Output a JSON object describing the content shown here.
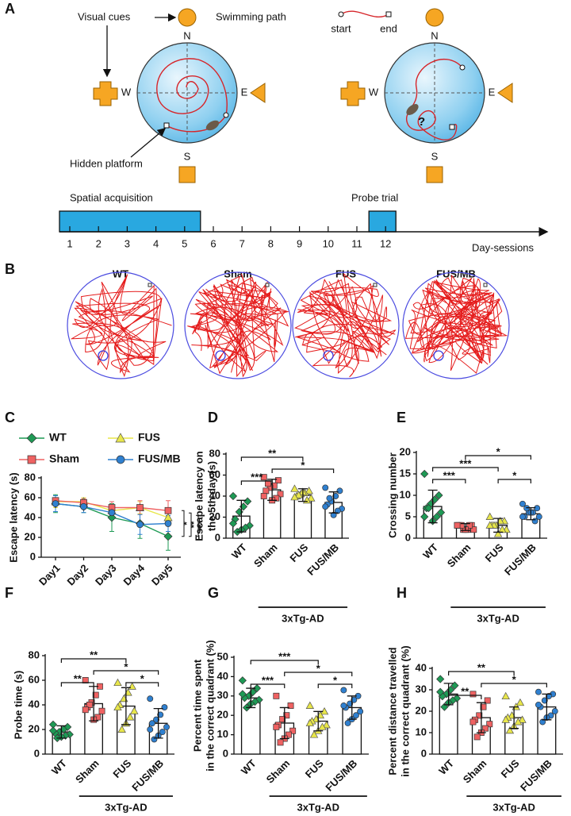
{
  "panel_a": {
    "label": "A",
    "visual_cues": "Visual cues",
    "swimming_path": "Swimming path",
    "start": "start",
    "end": "end",
    "hidden_platform": "Hidden platform",
    "question": "?",
    "compass_left": [
      "N",
      "W",
      "E",
      "S"
    ],
    "compass_right": [
      "N",
      "W",
      "E",
      "S"
    ],
    "timeline": {
      "acquisition": "Spatial acquisition",
      "probe": "Probe trial",
      "days": [
        1,
        2,
        3,
        4,
        5,
        6,
        7,
        8,
        9,
        10,
        11,
        12
      ],
      "acquisition_days": [
        1,
        5
      ],
      "probe_day": 12,
      "axis_label": "Day-sessions"
    }
  },
  "panel_b": {
    "label": "B",
    "titles": [
      "WT",
      "Sham",
      "FUS",
      "FUS/MB"
    ]
  },
  "chart_data": [
    {
      "label": "C",
      "type": "line",
      "ylabel": [
        "Escape latency (s)"
      ],
      "categories": [
        "Day1",
        "Day2",
        "Day3",
        "Day4",
        "Day5"
      ],
      "series": [
        {
          "name": "WT",
          "color": "#1e9a55",
          "marker": "diamond",
          "values": [
            54,
            51,
            40,
            34,
            21
          ],
          "errors": [
            9,
            6,
            14,
            15,
            14
          ]
        },
        {
          "name": "FUS",
          "color": "#e8e64a",
          "marker": "triangle",
          "values": [
            56,
            56,
            47,
            50,
            40
          ],
          "errors": [
            6,
            4,
            5,
            6,
            7
          ]
        },
        {
          "name": "Sham",
          "color": "#ef6262",
          "marker": "square",
          "values": [
            57,
            55,
            50,
            50,
            47
          ],
          "errors": [
            5,
            4,
            6,
            7,
            10
          ]
        },
        {
          "name": "FUS/MB",
          "color": "#2f80d0",
          "marker": "circle",
          "values": [
            54,
            51,
            45,
            33,
            34
          ],
          "errors": [
            8,
            6,
            7,
            10,
            8
          ]
        }
      ],
      "ylim": [
        0,
        80
      ],
      "yticks": [
        0,
        20,
        40,
        60,
        80
      ],
      "significance": [
        "*",
        "**",
        "***"
      ]
    },
    {
      "label": "D",
      "type": "bar",
      "ylabel": [
        "Escape latency on",
        "the 5th day (s)"
      ],
      "categories": [
        "WT",
        "Sham",
        "FUS",
        "FUS/MB"
      ],
      "colors": [
        "#1e9a55",
        "#ef6262",
        "#e8e64a",
        "#2f80d0"
      ],
      "values": [
        21,
        46,
        41,
        34
      ],
      "errors": [
        15,
        10,
        6,
        10
      ],
      "points": [
        [
          40,
          35,
          30,
          25,
          18,
          12,
          10,
          8,
          6,
          14
        ],
        [
          58,
          55,
          50,
          48,
          45,
          42,
          38,
          36,
          52,
          40
        ],
        [
          47,
          45,
          43,
          42,
          40,
          38,
          36,
          44,
          41,
          39
        ],
        [
          48,
          45,
          40,
          35,
          32,
          28,
          26,
          22,
          38,
          30
        ]
      ],
      "ylim": [
        0,
        80
      ],
      "yticks": [
        0,
        20,
        40,
        60,
        80
      ],
      "comparisons": [
        {
          "pair": [
            "WT",
            "Sham"
          ],
          "label": "***"
        },
        {
          "pair": [
            "Sham",
            "FUS/MB"
          ],
          "label": "*"
        },
        {
          "pair": [
            "WT",
            "FUS"
          ],
          "label": "**"
        }
      ],
      "group": {
        "label": "3xTg-AD",
        "members": [
          "Sham",
          "FUS",
          "FUS/MB"
        ]
      }
    },
    {
      "label": "E",
      "type": "bar",
      "ylabel": [
        "Crossing number"
      ],
      "categories": [
        "WT",
        "Sham",
        "FUS",
        "FUS/MB"
      ],
      "colors": [
        "#1e9a55",
        "#ef6262",
        "#e8e64a",
        "#2f80d0"
      ],
      "values": [
        7.4,
        2.6,
        3,
        5.7
      ],
      "errors": [
        3.8,
        0.8,
        1.6,
        1.4
      ],
      "points": [
        [
          15,
          10,
          9,
          8,
          7,
          6,
          5,
          4,
          7,
          5
        ],
        [
          3,
          3,
          2,
          2,
          3,
          2,
          3,
          2,
          3,
          3
        ],
        [
          5,
          4,
          4,
          3,
          3,
          2,
          2,
          1,
          3,
          3
        ],
        [
          8,
          7,
          6,
          6,
          5,
          5,
          4,
          6,
          7,
          5
        ]
      ],
      "ylim": [
        0,
        20
      ],
      "yticks": [
        0,
        5,
        10,
        15,
        20
      ],
      "comparisons": [
        {
          "pair": [
            "FUS",
            "FUS/MB"
          ],
          "label": "*"
        },
        {
          "pair": [
            "WT",
            "FUS"
          ],
          "label": "***"
        },
        {
          "pair": [
            "WT",
            "Sham"
          ],
          "label": "***"
        },
        {
          "pair": [
            "Sham",
            "FUS/MB"
          ],
          "label": "*"
        }
      ],
      "group": {
        "label": "3xTg-AD",
        "members": [
          "Sham",
          "FUS",
          "FUS/MB"
        ]
      }
    },
    {
      "label": "F",
      "type": "bar",
      "ylabel": [
        "Probe time (s)"
      ],
      "categories": [
        "WT",
        "Sham",
        "FUS",
        "FUS/MB"
      ],
      "colors": [
        "#1e9a55",
        "#ef6262",
        "#e8e64a",
        "#2f80d0"
      ],
      "values": [
        18,
        41,
        39,
        25
      ],
      "errors": [
        5,
        14,
        15,
        12
      ],
      "points": [
        [
          24,
          22,
          20,
          18,
          17,
          16,
          15,
          14,
          13,
          19
        ],
        [
          60,
          55,
          48,
          42,
          38,
          35,
          30,
          28,
          40,
          36
        ],
        [
          58,
          55,
          50,
          45,
          40,
          35,
          30,
          25,
          20,
          38
        ],
        [
          45,
          38,
          32,
          28,
          25,
          22,
          18,
          15,
          12,
          20
        ]
      ],
      "ylim": [
        0,
        80
      ],
      "yticks": [
        0,
        20,
        40,
        60,
        80
      ],
      "comparisons": [
        {
          "pair": [
            "WT",
            "Sham"
          ],
          "label": "**"
        },
        {
          "pair": [
            "FUS",
            "FUS/MB"
          ],
          "label": "*"
        },
        {
          "pair": [
            "Sham",
            "FUS/MB"
          ],
          "label": "*"
        },
        {
          "pair": [
            "WT",
            "FUS"
          ],
          "label": "**"
        }
      ],
      "group": {
        "label": "3xTg-AD",
        "members": [
          "Sham",
          "FUS",
          "FUS/MB"
        ]
      }
    },
    {
      "label": "G",
      "type": "bar",
      "ylabel": [
        "Percent time spent",
        "in the correct quadrant (%)"
      ],
      "categories": [
        "WT",
        "Sham",
        "FUS",
        "FUS/MB"
      ],
      "colors": [
        "#1e9a55",
        "#ef6262",
        "#e8e64a",
        "#2f80d0"
      ],
      "values": [
        29,
        16,
        17,
        24
      ],
      "errors": [
        5,
        8,
        5,
        6
      ],
      "points": [
        [
          38,
          34,
          32,
          30,
          29,
          28,
          27,
          26,
          24,
          31
        ],
        [
          30,
          25,
          20,
          18,
          15,
          12,
          10,
          8,
          6,
          14
        ],
        [
          25,
          22,
          20,
          18,
          17,
          15,
          14,
          12,
          10,
          16
        ],
        [
          33,
          30,
          28,
          26,
          24,
          22,
          20,
          18,
          16,
          25
        ]
      ],
      "ylim": [
        0,
        50
      ],
      "yticks": [
        0,
        10,
        20,
        30,
        40,
        50
      ],
      "comparisons": [
        {
          "pair": [
            "FUS",
            "FUS/MB"
          ],
          "label": "*"
        },
        {
          "pair": [
            "WT",
            "Sham"
          ],
          "label": "***"
        },
        {
          "pair": [
            "Sham",
            "FUS/MB"
          ],
          "label": "*"
        },
        {
          "pair": [
            "WT",
            "FUS"
          ],
          "label": "***"
        }
      ],
      "group": {
        "label": "3xTg-AD",
        "members": [
          "Sham",
          "FUS",
          "FUS/MB"
        ]
      }
    },
    {
      "label": "H",
      "type": "bar",
      "ylabel": [
        "Percent distance travelled",
        "in the correct quadrant (%)"
      ],
      "categories": [
        "WT",
        "Sham",
        "FUS",
        "FUS/MB"
      ],
      "colors": [
        "#1e9a55",
        "#ef6262",
        "#e8e64a",
        "#2f80d0"
      ],
      "values": [
        28,
        17,
        17,
        22
      ],
      "errors": [
        5,
        7,
        5,
        6
      ],
      "points": [
        [
          35,
          32,
          30,
          28,
          27,
          26,
          25,
          24,
          22,
          29
        ],
        [
          28,
          25,
          22,
          18,
          16,
          14,
          12,
          10,
          8,
          15
        ],
        [
          27,
          24,
          22,
          18,
          17,
          16,
          15,
          13,
          11,
          16
        ],
        [
          29,
          28,
          27,
          25,
          22,
          20,
          18,
          17,
          15,
          23
        ]
      ],
      "ylim": [
        0,
        40
      ],
      "yticks": [
        0,
        10,
        20,
        30,
        40
      ],
      "comparisons": [
        {
          "pair": [
            "WT",
            "Sham"
          ],
          "label": "**"
        },
        {
          "pair": [
            "Sham",
            "FUS/MB"
          ],
          "label": "*"
        },
        {
          "pair": [
            "WT",
            "FUS"
          ],
          "label": "**"
        }
      ],
      "group": {
        "label": "3xTg-AD",
        "members": [
          "Sham",
          "FUS",
          "FUS/MB"
        ]
      }
    }
  ]
}
